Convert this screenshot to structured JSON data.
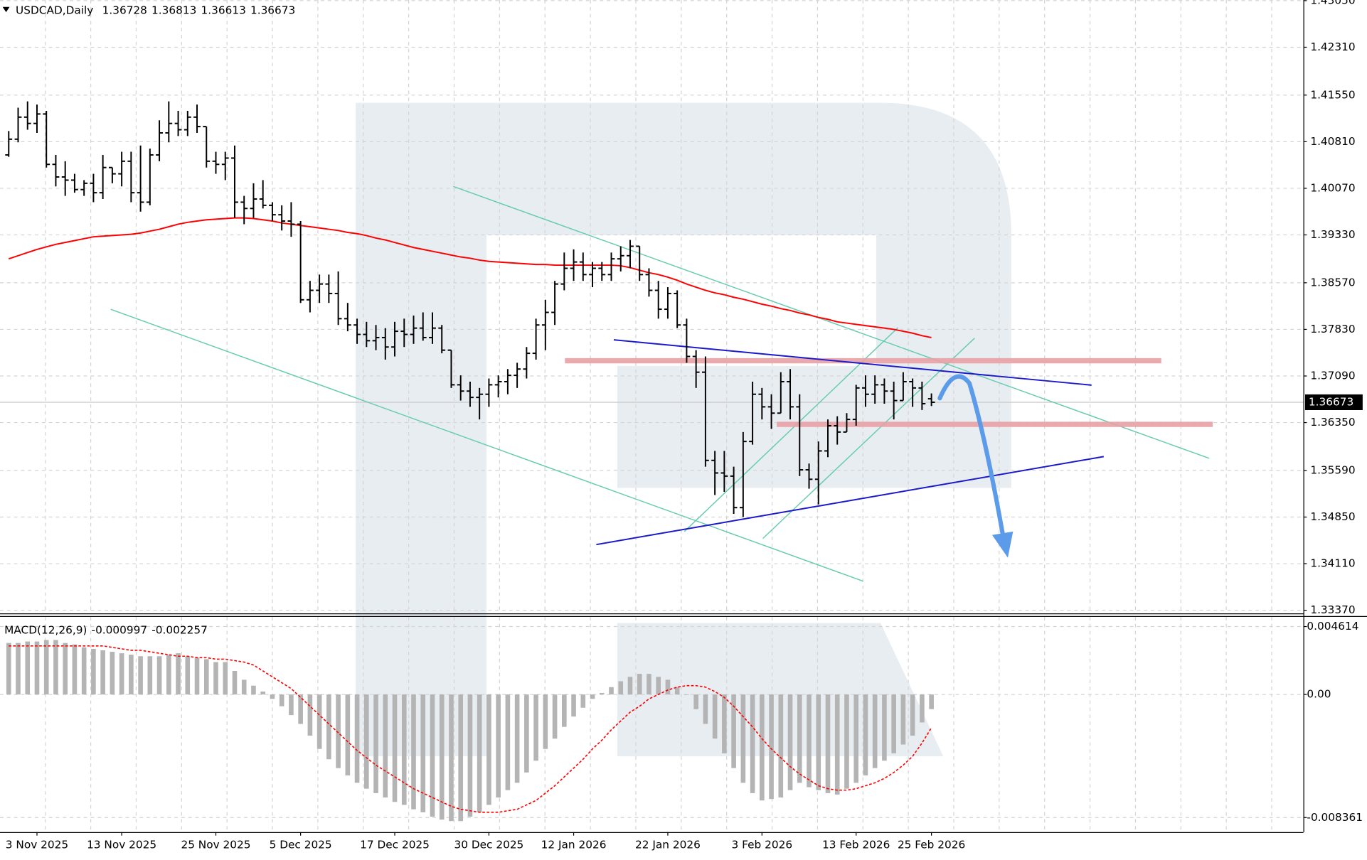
{
  "chart_data": {
    "type": "ohlc",
    "title": "USDCAD,Daily",
    "color": "#000000",
    "grid": true,
    "categories": [
      null,
      null,
      null,
      "3 Nov 2025",
      null,
      null,
      null,
      null,
      null,
      null,
      null,
      null,
      "13 Nov 2025",
      null,
      null,
      null,
      null,
      null,
      null,
      null,
      null,
      null,
      "25 Nov 2025",
      null,
      null,
      null,
      null,
      null,
      null,
      null,
      null,
      "5 Dec 2025",
      null,
      null,
      null,
      null,
      null,
      null,
      null,
      null,
      null,
      "17 Dec 2025",
      null,
      null,
      null,
      null,
      null,
      null,
      null,
      null,
      null,
      "30 Dec 2025",
      null,
      null,
      null,
      null,
      null,
      null,
      null,
      null,
      "12 Jan 2026",
      null,
      null,
      null,
      null,
      null,
      null,
      null,
      null,
      null,
      "22 Jan 2026",
      null,
      null,
      null,
      null,
      null,
      null,
      null,
      null,
      null,
      "3 Feb 2026",
      null,
      null,
      null,
      null,
      null,
      null,
      null,
      null,
      null,
      "13 Feb 2026",
      null,
      null,
      null,
      null,
      null,
      null,
      null,
      "25 Feb 2026"
    ],
    "open": [
      1.406,
      1.4085,
      1.412,
      1.411,
      1.4125,
      1.4045,
      1.4025,
      1.402,
      1.4005,
      1.4015,
      1.4,
      1.404,
      1.403,
      1.405,
      1.4,
      1.3985,
      1.406,
      1.4095,
      1.411,
      1.41,
      1.412,
      1.4105,
      1.405,
      1.4045,
      1.4055,
      1.3985,
      1.3975,
      1.399,
      1.398,
      1.3965,
      1.3955,
      1.395,
      1.383,
      1.3845,
      1.3855,
      1.384,
      1.38,
      1.379,
      1.3775,
      1.3765,
      1.377,
      1.3755,
      1.378,
      1.3775,
      1.3785,
      1.377,
      1.3785,
      1.375,
      1.3695,
      1.3685,
      1.3675,
      1.368,
      1.3695,
      1.37,
      1.371,
      1.372,
      1.3745,
      1.379,
      1.381,
      1.3855,
      1.388,
      1.389,
      1.387,
      1.388,
      1.387,
      1.3895,
      1.39,
      1.3915,
      1.387,
      1.3845,
      1.3815,
      1.384,
      1.379,
      1.374,
      1.3715,
      1.3575,
      1.3555,
      1.355,
      1.35,
      1.3605,
      1.368,
      1.366,
      1.365,
      1.37,
      1.366,
      1.356,
      1.3545,
      1.359,
      1.363,
      1.362,
      1.364,
      1.369,
      1.368,
      1.3695,
      1.3685,
      1.367,
      1.37,
      1.369,
      1.36728
    ],
    "high": [
      1.4098,
      1.4135,
      1.4145,
      1.414,
      1.413,
      1.406,
      1.405,
      1.403,
      1.402,
      1.403,
      1.406,
      1.404,
      1.4065,
      1.4065,
      1.4075,
      1.407,
      1.4115,
      1.4145,
      1.413,
      1.413,
      1.414,
      1.4105,
      1.4065,
      1.4065,
      1.4075,
      1.3995,
      1.4015,
      1.402,
      1.3985,
      1.398,
      1.3985,
      1.3955,
      1.386,
      1.387,
      1.387,
      1.3875,
      1.3825,
      1.38,
      1.3795,
      1.379,
      1.3785,
      1.3795,
      1.38,
      1.3805,
      1.381,
      1.381,
      1.379,
      1.375,
      1.371,
      1.37,
      1.369,
      1.3705,
      1.371,
      1.372,
      1.373,
      1.3755,
      1.38,
      1.383,
      1.386,
      1.3905,
      1.391,
      1.3905,
      1.389,
      1.389,
      1.3905,
      1.3915,
      1.3925,
      1.3915,
      1.388,
      1.386,
      1.385,
      1.3845,
      1.38,
      1.375,
      1.374,
      1.359,
      1.359,
      1.3565,
      1.362,
      1.37,
      1.369,
      1.368,
      1.3715,
      1.372,
      1.368,
      1.357,
      1.3605,
      1.364,
      1.3645,
      1.365,
      1.3695,
      1.371,
      1.371,
      1.3705,
      1.37,
      1.3715,
      1.3705,
      1.37,
      1.36813
    ],
    "low": [
      1.4057,
      1.408,
      1.41,
      1.4095,
      1.404,
      1.401,
      1.3995,
      1.4,
      1.3995,
      1.3985,
      1.399,
      1.4015,
      1.401,
      1.3985,
      1.397,
      1.398,
      1.405,
      1.408,
      1.409,
      1.409,
      1.4095,
      1.404,
      1.403,
      1.402,
      1.396,
      1.395,
      1.396,
      1.3975,
      1.3955,
      1.394,
      1.393,
      1.3825,
      1.381,
      1.3825,
      1.3825,
      1.379,
      1.378,
      1.376,
      1.3755,
      1.375,
      1.3735,
      1.374,
      1.3755,
      1.376,
      1.3765,
      1.376,
      1.3745,
      1.369,
      1.367,
      1.366,
      1.364,
      1.366,
      1.3675,
      1.368,
      1.369,
      1.3705,
      1.3735,
      1.375,
      1.379,
      1.3845,
      1.386,
      1.386,
      1.385,
      1.386,
      1.386,
      1.3875,
      1.388,
      1.386,
      1.3835,
      1.38,
      1.38,
      1.3785,
      1.373,
      1.369,
      1.3565,
      1.352,
      1.3525,
      1.349,
      1.3485,
      1.36,
      1.364,
      1.3625,
      1.365,
      1.364,
      1.355,
      1.353,
      1.3505,
      1.358,
      1.36,
      1.362,
      1.363,
      1.366,
      1.3665,
      1.3665,
      1.364,
      1.367,
      1.366,
      1.3655,
      1.36613
    ],
    "close": [
      1.4085,
      1.412,
      1.411,
      1.4125,
      1.4045,
      1.4025,
      1.402,
      1.4005,
      1.4015,
      1.4,
      1.404,
      1.403,
      1.405,
      1.4,
      1.3985,
      1.406,
      1.4095,
      1.411,
      1.41,
      1.412,
      1.4105,
      1.405,
      1.4045,
      1.4055,
      1.3985,
      1.3975,
      1.399,
      1.398,
      1.3965,
      1.3955,
      1.395,
      1.383,
      1.3845,
      1.3855,
      1.384,
      1.38,
      1.379,
      1.3775,
      1.3765,
      1.377,
      1.3755,
      1.378,
      1.3775,
      1.3785,
      1.377,
      1.3785,
      1.375,
      1.3695,
      1.3685,
      1.3675,
      1.368,
      1.3695,
      1.37,
      1.371,
      1.372,
      1.3745,
      1.379,
      1.381,
      1.3855,
      1.388,
      1.389,
      1.387,
      1.388,
      1.387,
      1.3895,
      1.39,
      1.3915,
      1.387,
      1.3845,
      1.3815,
      1.384,
      1.379,
      1.374,
      1.3715,
      1.3575,
      1.3555,
      1.355,
      1.35,
      1.3605,
      1.368,
      1.366,
      1.365,
      1.37,
      1.366,
      1.356,
      1.3545,
      1.359,
      1.363,
      1.362,
      1.364,
      1.369,
      1.368,
      1.3695,
      1.3685,
      1.367,
      1.37,
      1.369,
      1.3665,
      1.36673
    ],
    "ma": {
      "color": "#ff0000",
      "values": [
        1.3895,
        1.39,
        1.3905,
        1.391,
        1.3914,
        1.3918,
        1.3921,
        1.3924,
        1.3927,
        1.393,
        1.3931,
        1.3932,
        1.3933,
        1.3934,
        1.3936,
        1.3939,
        1.3942,
        1.3946,
        1.395,
        1.3953,
        1.3955,
        1.3957,
        1.3958,
        1.3959,
        1.396,
        1.396,
        1.3959,
        1.3957,
        1.3955,
        1.3952,
        1.395,
        1.3948,
        1.3946,
        1.3944,
        1.3942,
        1.394,
        1.3937,
        1.3935,
        1.3932,
        1.3928,
        1.3925,
        1.3921,
        1.3917,
        1.3913,
        1.391,
        1.3907,
        1.3904,
        1.3901,
        1.3898,
        1.3896,
        1.3893,
        1.3891,
        1.389,
        1.3889,
        1.3888,
        1.3887,
        1.3886,
        1.3886,
        1.3885,
        1.3885,
        1.3885,
        1.3885,
        1.3885,
        1.3885,
        1.3885,
        1.3884,
        1.3881,
        1.3877,
        1.3873,
        1.387,
        1.3866,
        1.3861,
        1.3855,
        1.385,
        1.3845,
        1.3841,
        1.3838,
        1.3834,
        1.3831,
        1.3827,
        1.3823,
        1.382,
        1.3816,
        1.3813,
        1.3809,
        1.3806,
        1.3802,
        1.3799,
        1.3795,
        1.3793,
        1.3791,
        1.3789,
        1.3787,
        1.3785,
        1.3783,
        1.378,
        1.3777,
        1.3773,
        1.377
      ]
    },
    "ylim": [
      1.3332,
      1.4306
    ],
    "yticks": [
      {
        "value": 1.4305,
        "label": "1.43050"
      },
      {
        "value": 1.4231,
        "label": "1.42310"
      },
      {
        "value": 1.4155,
        "label": "1.41550"
      },
      {
        "value": 1.4081,
        "label": "1.40810"
      },
      {
        "value": 1.4007,
        "label": "1.40070"
      },
      {
        "value": 1.3933,
        "label": "1.39330"
      },
      {
        "value": 1.3857,
        "label": "1.38570"
      },
      {
        "value": 1.3783,
        "label": "1.37830"
      },
      {
        "value": 1.3709,
        "label": "1.37090"
      },
      {
        "value": 1.3635,
        "label": "1.36350"
      },
      {
        "value": 1.3559,
        "label": "1.35590"
      },
      {
        "value": 1.3485,
        "label": "1.34850"
      },
      {
        "value": 1.3411,
        "label": "1.34110"
      },
      {
        "value": 1.3337,
        "label": "1.33370"
      }
    ],
    "macd": {
      "title": "MACD(12,26,9)",
      "ylim": [
        -0.00935,
        0.00527
      ],
      "yticks": [
        0.004614,
        {
          "value": 0,
          "label": "0.00"
        },
        -0.008361
      ],
      "histogram": {
        "color": "#b4b4b4",
        "values": [
          0.0035,
          0.0035,
          0.0036,
          0.0036,
          0.0037,
          0.0037,
          0.0035,
          0.0034,
          0.0032,
          0.0031,
          0.003,
          0.0029,
          0.0028,
          0.0027,
          0.0026,
          0.0026,
          0.0026,
          0.0027,
          0.0028,
          0.0026,
          0.0025,
          0.0024,
          0.0022,
          0.0022,
          0.0016,
          0.001,
          0.0006,
          0.0002,
          -0.0003,
          -0.0008,
          -0.0014,
          -0.002,
          -0.0028,
          -0.0037,
          -0.0044,
          -0.005,
          -0.0055,
          -0.006,
          -0.0064,
          -0.0067,
          -0.007,
          -0.0073,
          -0.0075,
          -0.0078,
          -0.008,
          -0.0083,
          -0.0085,
          -0.0086,
          -0.0086,
          -0.0083,
          -0.008,
          -0.0075,
          -0.007,
          -0.0065,
          -0.006,
          -0.0053,
          -0.0045,
          -0.0037,
          -0.003,
          -0.0022,
          -0.0015,
          -0.0009,
          -0.0003,
          0.0001,
          0.0005,
          0.0009,
          0.0012,
          0.0014,
          0.0014,
          0.0012,
          0.001,
          0.0005,
          0.0,
          -0.001,
          -0.002,
          -0.003,
          -0.004,
          -0.005,
          -0.006,
          -0.0067,
          -0.0072,
          -0.0071,
          -0.007,
          -0.0065,
          -0.006,
          -0.0063,
          -0.0065,
          -0.0067,
          -0.0068,
          -0.0064,
          -0.006,
          -0.0055,
          -0.005,
          -0.0045,
          -0.004,
          -0.0034,
          -0.0028,
          -0.0019,
          -0.000997
        ]
      },
      "signal": {
        "color": "#ff0000",
        "values": [
          0.0033,
          0.0033,
          0.0033,
          0.0033,
          0.0033,
          0.0033,
          0.0033,
          0.0033,
          0.0033,
          0.0033,
          0.0033,
          0.0032,
          0.0031,
          0.003,
          0.003,
          0.0029,
          0.0028,
          0.0027,
          0.0026,
          0.0026,
          0.0025,
          0.0025,
          0.0024,
          0.0024,
          0.0023,
          0.0022,
          0.002,
          0.0016,
          0.0012,
          0.0008,
          0.0004,
          -0.0002,
          -0.0008,
          -0.0014,
          -0.002,
          -0.0026,
          -0.0032,
          -0.0038,
          -0.0043,
          -0.0048,
          -0.0052,
          -0.0056,
          -0.006,
          -0.0064,
          -0.0067,
          -0.007,
          -0.0073,
          -0.0076,
          -0.0078,
          -0.0079,
          -0.008,
          -0.008,
          -0.008,
          -0.0079,
          -0.0078,
          -0.0075,
          -0.0072,
          -0.0067,
          -0.0062,
          -0.0056,
          -0.005,
          -0.0044,
          -0.0037,
          -0.0031,
          -0.0024,
          -0.0018,
          -0.0012,
          -0.0008,
          -0.0003,
          0.0,
          0.0003,
          0.0005,
          0.0006,
          0.0006,
          0.0005,
          0.0002,
          -0.0002,
          -0.0008,
          -0.0015,
          -0.0022,
          -0.003,
          -0.0037,
          -0.0043,
          -0.0049,
          -0.0054,
          -0.0058,
          -0.0062,
          -0.0064,
          -0.0065,
          -0.0065,
          -0.0064,
          -0.0062,
          -0.006,
          -0.0057,
          -0.0053,
          -0.0048,
          -0.0042,
          -0.0033,
          -0.002257
        ]
      }
    }
  }
}
